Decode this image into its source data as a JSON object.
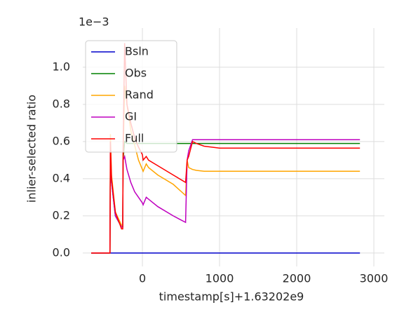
{
  "chart_data": {
    "type": "line",
    "x_label": "timestamp[s]+1.63202e9",
    "y_label": "inlier-selected ratio",
    "y_offset_label": "1e−3",
    "x": [
      -664,
      -420,
      -415,
      -400,
      -350,
      -270,
      -255,
      -250,
      -230,
      -200,
      -150,
      -100,
      -50,
      0,
      10,
      50,
      80,
      200,
      400,
      560,
      580,
      600,
      650,
      700,
      800,
      1000,
      1500,
      2820
    ],
    "series": [
      {
        "name": "Bsln",
        "color": "#0000cc",
        "values": [
          0,
          0,
          0,
          0,
          0,
          0,
          0,
          0,
          0,
          0,
          0,
          0,
          0,
          0,
          0,
          0,
          0,
          0,
          0,
          0,
          0,
          0,
          0,
          0,
          0,
          0,
          0,
          0
        ]
      },
      {
        "name": "Obs",
        "color": "#008000",
        "values": [
          0,
          0,
          0.55,
          0.38,
          0.2,
          0.14,
          0.14,
          0.5,
          0.6,
          0.59,
          0.59,
          0.59,
          0.59,
          0.59,
          0.59,
          0.59,
          0.59,
          0.59,
          0.59,
          0.59,
          0.59,
          0.59,
          0.59,
          0.59,
          0.59,
          0.59,
          0.59,
          0.59
        ]
      },
      {
        "name": "Rand",
        "color": "#ffa500",
        "values": [
          0,
          0,
          0.64,
          0.42,
          0.22,
          0.15,
          0.15,
          0.5,
          0.9,
          0.8,
          0.66,
          0.58,
          0.5,
          0.45,
          0.44,
          0.48,
          0.46,
          0.42,
          0.37,
          0.31,
          0.5,
          0.46,
          0.45,
          0.445,
          0.44,
          0.44,
          0.44,
          0.44
        ]
      },
      {
        "name": "GI",
        "color": "#bf00bf",
        "values": [
          0,
          0,
          0.55,
          0.38,
          0.2,
          0.14,
          0.14,
          0.5,
          0.52,
          0.45,
          0.38,
          0.33,
          0.3,
          0.27,
          0.26,
          0.3,
          0.29,
          0.25,
          0.2,
          0.165,
          0.5,
          0.55,
          0.61,
          0.61,
          0.61,
          0.61,
          0.61,
          0.61
        ]
      },
      {
        "name": "Full",
        "color": "#ff0000",
        "values": [
          0,
          0,
          0.6,
          0.4,
          0.22,
          0.13,
          0.13,
          0.55,
          1.13,
          0.8,
          0.7,
          0.62,
          0.57,
          0.53,
          0.5,
          0.52,
          0.5,
          0.47,
          0.42,
          0.38,
          0.5,
          0.52,
          0.6,
          0.59,
          0.575,
          0.565,
          0.565,
          0.565
        ]
      }
    ],
    "xlim": [
      -773,
      3136
    ],
    "ylim": [
      -0.072,
      1.211
    ],
    "xticks": [
      0,
      1000,
      2000,
      3000
    ],
    "yticks": [
      {
        "value": 0,
        "label": "0.0"
      },
      0.2,
      0.4,
      0.6,
      0.8,
      {
        "value": 1,
        "label": "1.0"
      }
    ],
    "grid": true,
    "legend": "upper left"
  }
}
